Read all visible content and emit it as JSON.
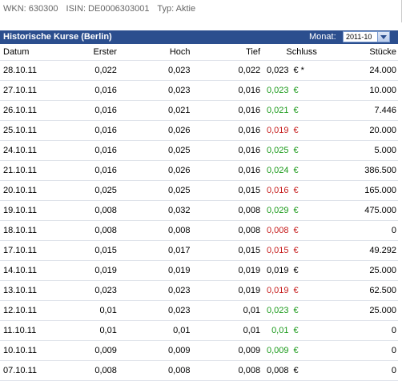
{
  "info": {
    "wkn": "WKN: 630300",
    "isin": "ISIN: DE0006303001",
    "typ": "Typ: Aktie"
  },
  "panel": {
    "title": "Historische Kurse (Berlin)",
    "monat_label": "Monat:",
    "monat_value": "2011-10"
  },
  "table": {
    "headers": {
      "datum": "Datum",
      "erster": "Erster",
      "hoch": "Hoch",
      "tief": "Tief",
      "schluss": "Schluss",
      "stuecke": "Stücke"
    },
    "rows": [
      {
        "datum": "28.10.11",
        "erster": "0,022",
        "hoch": "0,023",
        "tief": "0,022",
        "schluss": "0,023",
        "sym": "€ *",
        "color": "black",
        "stuecke": "24.000"
      },
      {
        "datum": "27.10.11",
        "erster": "0,016",
        "hoch": "0,023",
        "tief": "0,016",
        "schluss": "0,023",
        "sym": "€",
        "color": "green",
        "stuecke": "10.000"
      },
      {
        "datum": "26.10.11",
        "erster": "0,016",
        "hoch": "0,021",
        "tief": "0,016",
        "schluss": "0,021",
        "sym": "€",
        "color": "green",
        "stuecke": "7.446"
      },
      {
        "datum": "25.10.11",
        "erster": "0,016",
        "hoch": "0,026",
        "tief": "0,016",
        "schluss": "0,019",
        "sym": "€",
        "color": "red",
        "stuecke": "20.000"
      },
      {
        "datum": "24.10.11",
        "erster": "0,016",
        "hoch": "0,025",
        "tief": "0,016",
        "schluss": "0,025",
        "sym": "€",
        "color": "green",
        "stuecke": "5.000"
      },
      {
        "datum": "21.10.11",
        "erster": "0,016",
        "hoch": "0,026",
        "tief": "0,016",
        "schluss": "0,024",
        "sym": "€",
        "color": "green",
        "stuecke": "386.500"
      },
      {
        "datum": "20.10.11",
        "erster": "0,025",
        "hoch": "0,025",
        "tief": "0,015",
        "schluss": "0,016",
        "sym": "€",
        "color": "red",
        "stuecke": "165.000"
      },
      {
        "datum": "19.10.11",
        "erster": "0,008",
        "hoch": "0,032",
        "tief": "0,008",
        "schluss": "0,029",
        "sym": "€",
        "color": "green",
        "stuecke": "475.000"
      },
      {
        "datum": "18.10.11",
        "erster": "0,008",
        "hoch": "0,008",
        "tief": "0,008",
        "schluss": "0,008",
        "sym": "€",
        "color": "red",
        "stuecke": "0"
      },
      {
        "datum": "17.10.11",
        "erster": "0,015",
        "hoch": "0,017",
        "tief": "0,015",
        "schluss": "0,015",
        "sym": "€",
        "color": "red",
        "stuecke": "49.292"
      },
      {
        "datum": "14.10.11",
        "erster": "0,019",
        "hoch": "0,019",
        "tief": "0,019",
        "schluss": "0,019",
        "sym": "€",
        "color": "black",
        "stuecke": "25.000"
      },
      {
        "datum": "13.10.11",
        "erster": "0,023",
        "hoch": "0,023",
        "tief": "0,019",
        "schluss": "0,019",
        "sym": "€",
        "color": "red",
        "stuecke": "62.500"
      },
      {
        "datum": "12.10.11",
        "erster": "0,01",
        "hoch": "0,023",
        "tief": "0,01",
        "schluss": "0,023",
        "sym": "€",
        "color": "green",
        "stuecke": "25.000"
      },
      {
        "datum": "11.10.11",
        "erster": "0,01",
        "hoch": "0,01",
        "tief": "0,01",
        "schluss": "0,01",
        "sym": "€",
        "color": "green",
        "stuecke": "0"
      },
      {
        "datum": "10.10.11",
        "erster": "0,009",
        "hoch": "0,009",
        "tief": "0,009",
        "schluss": "0,009",
        "sym": "€",
        "color": "green",
        "stuecke": "0"
      },
      {
        "datum": "07.10.11",
        "erster": "0,008",
        "hoch": "0,008",
        "tief": "0,008",
        "schluss": "0,008",
        "sym": "€",
        "color": "black",
        "stuecke": "0"
      }
    ]
  },
  "colors": {
    "header_bg": "#2b4e8e",
    "up": "#1a9a1a",
    "down": "#c61b1b"
  }
}
